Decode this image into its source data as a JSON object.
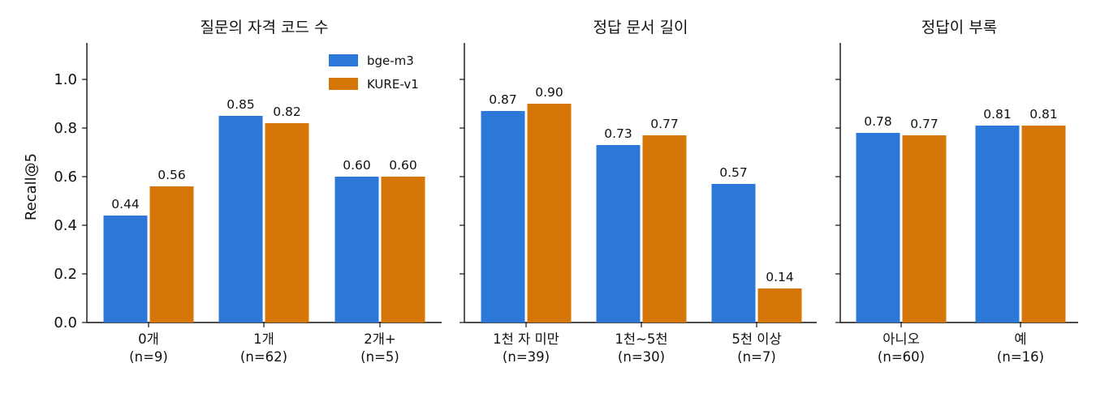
{
  "chart_data": {
    "type": "bar",
    "ylabel": "Recall@5",
    "ylim": [
      0,
      1.15
    ],
    "yticks": [
      "0.0",
      "0.2",
      "0.4",
      "0.6",
      "0.8",
      "1.0"
    ],
    "legend": {
      "placement": "top-right of first panel"
    },
    "colors": {
      "bge-m3": "#2b78d8",
      "KURE-v1": "#d67508"
    },
    "panels": [
      {
        "title": "질문의 자격 코드 수",
        "categories": [
          {
            "name": "0개",
            "n": "(n=9)"
          },
          {
            "name": "1개",
            "n": "(n=62)"
          },
          {
            "name": "2개+",
            "n": "(n=5)"
          }
        ],
        "series": [
          {
            "name": "bge-m3",
            "values": [
              0.44,
              0.85,
              0.6
            ],
            "labels": [
              "0.44",
              "0.85",
              "0.60"
            ]
          },
          {
            "name": "KURE-v1",
            "values": [
              0.56,
              0.82,
              0.6
            ],
            "labels": [
              "0.56",
              "0.82",
              "0.60"
            ]
          }
        ]
      },
      {
        "title": "정답 문서 길이",
        "categories": [
          {
            "name": "1천 자 미만",
            "n": "(n=39)"
          },
          {
            "name": "1천~5천",
            "n": "(n=30)"
          },
          {
            "name": "5천 이상",
            "n": "(n=7)"
          }
        ],
        "series": [
          {
            "name": "bge-m3",
            "values": [
              0.87,
              0.73,
              0.57
            ],
            "labels": [
              "0.87",
              "0.73",
              "0.57"
            ]
          },
          {
            "name": "KURE-v1",
            "values": [
              0.9,
              0.77,
              0.14
            ],
            "labels": [
              "0.90",
              "0.77",
              "0.14"
            ]
          }
        ]
      },
      {
        "title": "정답이 부록",
        "categories": [
          {
            "name": "아니오",
            "n": "(n=60)"
          },
          {
            "name": "예",
            "n": "(n=16)"
          }
        ],
        "series": [
          {
            "name": "bge-m3",
            "values": [
              0.78,
              0.81
            ],
            "labels": [
              "0.78",
              "0.81"
            ]
          },
          {
            "name": "KURE-v1",
            "values": [
              0.77,
              0.81
            ],
            "labels": [
              "0.77",
              "0.81"
            ]
          }
        ]
      }
    ]
  }
}
